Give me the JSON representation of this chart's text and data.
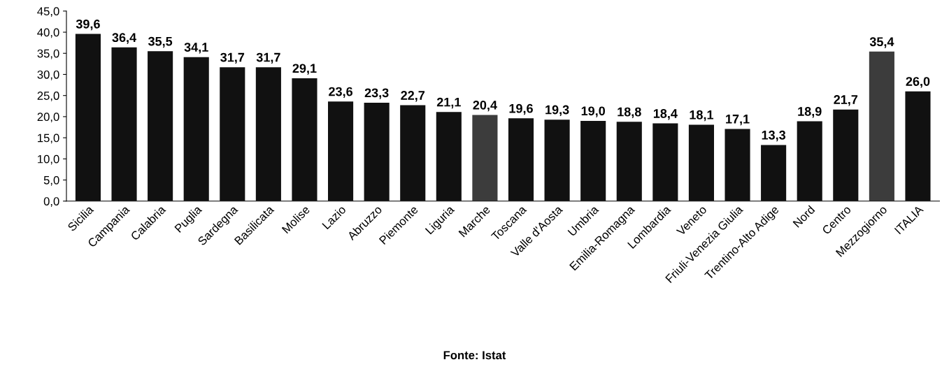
{
  "chart_data": {
    "type": "bar",
    "categories": [
      "Sicilia",
      "Campania",
      "Calabria",
      "Puglia",
      "Sardegna",
      "Basilicata",
      "Molise",
      "Lazio",
      "Abruzzo",
      "Piemonte",
      "Liguria",
      "Marche",
      "Toscana",
      "Valle d'Aosta",
      "Umbria",
      "Emilia-Romagna",
      "Lombardia",
      "Veneto",
      "Friuli-Venezia Giulia",
      "Trentino-Alto Adige",
      "Nord",
      "Centro",
      "Mezzogiorno",
      "ITALIA"
    ],
    "values": [
      39.6,
      36.4,
      35.5,
      34.1,
      31.7,
      31.7,
      29.1,
      23.6,
      23.3,
      22.7,
      21.1,
      20.4,
      19.6,
      19.3,
      19.0,
      18.8,
      18.4,
      18.1,
      17.1,
      13.3,
      18.9,
      21.7,
      35.4,
      26.0
    ],
    "value_labels": [
      "39,6",
      "36,4",
      "35,5",
      "34,1",
      "31,7",
      "31,7",
      "29,1",
      "23,6",
      "23,3",
      "22,7",
      "21,1",
      "20,4",
      "19,6",
      "19,3",
      "19,0",
      "18,8",
      "18,4",
      "18,1",
      "17,1",
      "13,3",
      "18,9",
      "21,7",
      "35,4",
      "26,0"
    ],
    "colors": [
      "#111111",
      "#111111",
      "#111111",
      "#111111",
      "#111111",
      "#111111",
      "#111111",
      "#111111",
      "#111111",
      "#111111",
      "#111111",
      "#3c3c3c",
      "#111111",
      "#111111",
      "#111111",
      "#111111",
      "#111111",
      "#111111",
      "#111111",
      "#111111",
      "#111111",
      "#111111",
      "#3c3c3c",
      "#111111"
    ],
    "ylim": [
      0,
      45
    ],
    "yticks": [
      {
        "value": 0,
        "label": "0,0"
      },
      {
        "value": 5,
        "label": "5,0"
      },
      {
        "value": 10,
        "label": "10,0"
      },
      {
        "value": 15,
        "label": "15,0"
      },
      {
        "value": 20,
        "label": "20,0"
      },
      {
        "value": 25,
        "label": "25,0"
      },
      {
        "value": 30,
        "label": "30,0"
      },
      {
        "value": 35,
        "label": "35,0"
      },
      {
        "value": 40,
        "label": "40,0"
      },
      {
        "value": 45,
        "label": "45,0"
      }
    ],
    "grid": false,
    "annotations": [
      "Fonte: Istat"
    ]
  }
}
